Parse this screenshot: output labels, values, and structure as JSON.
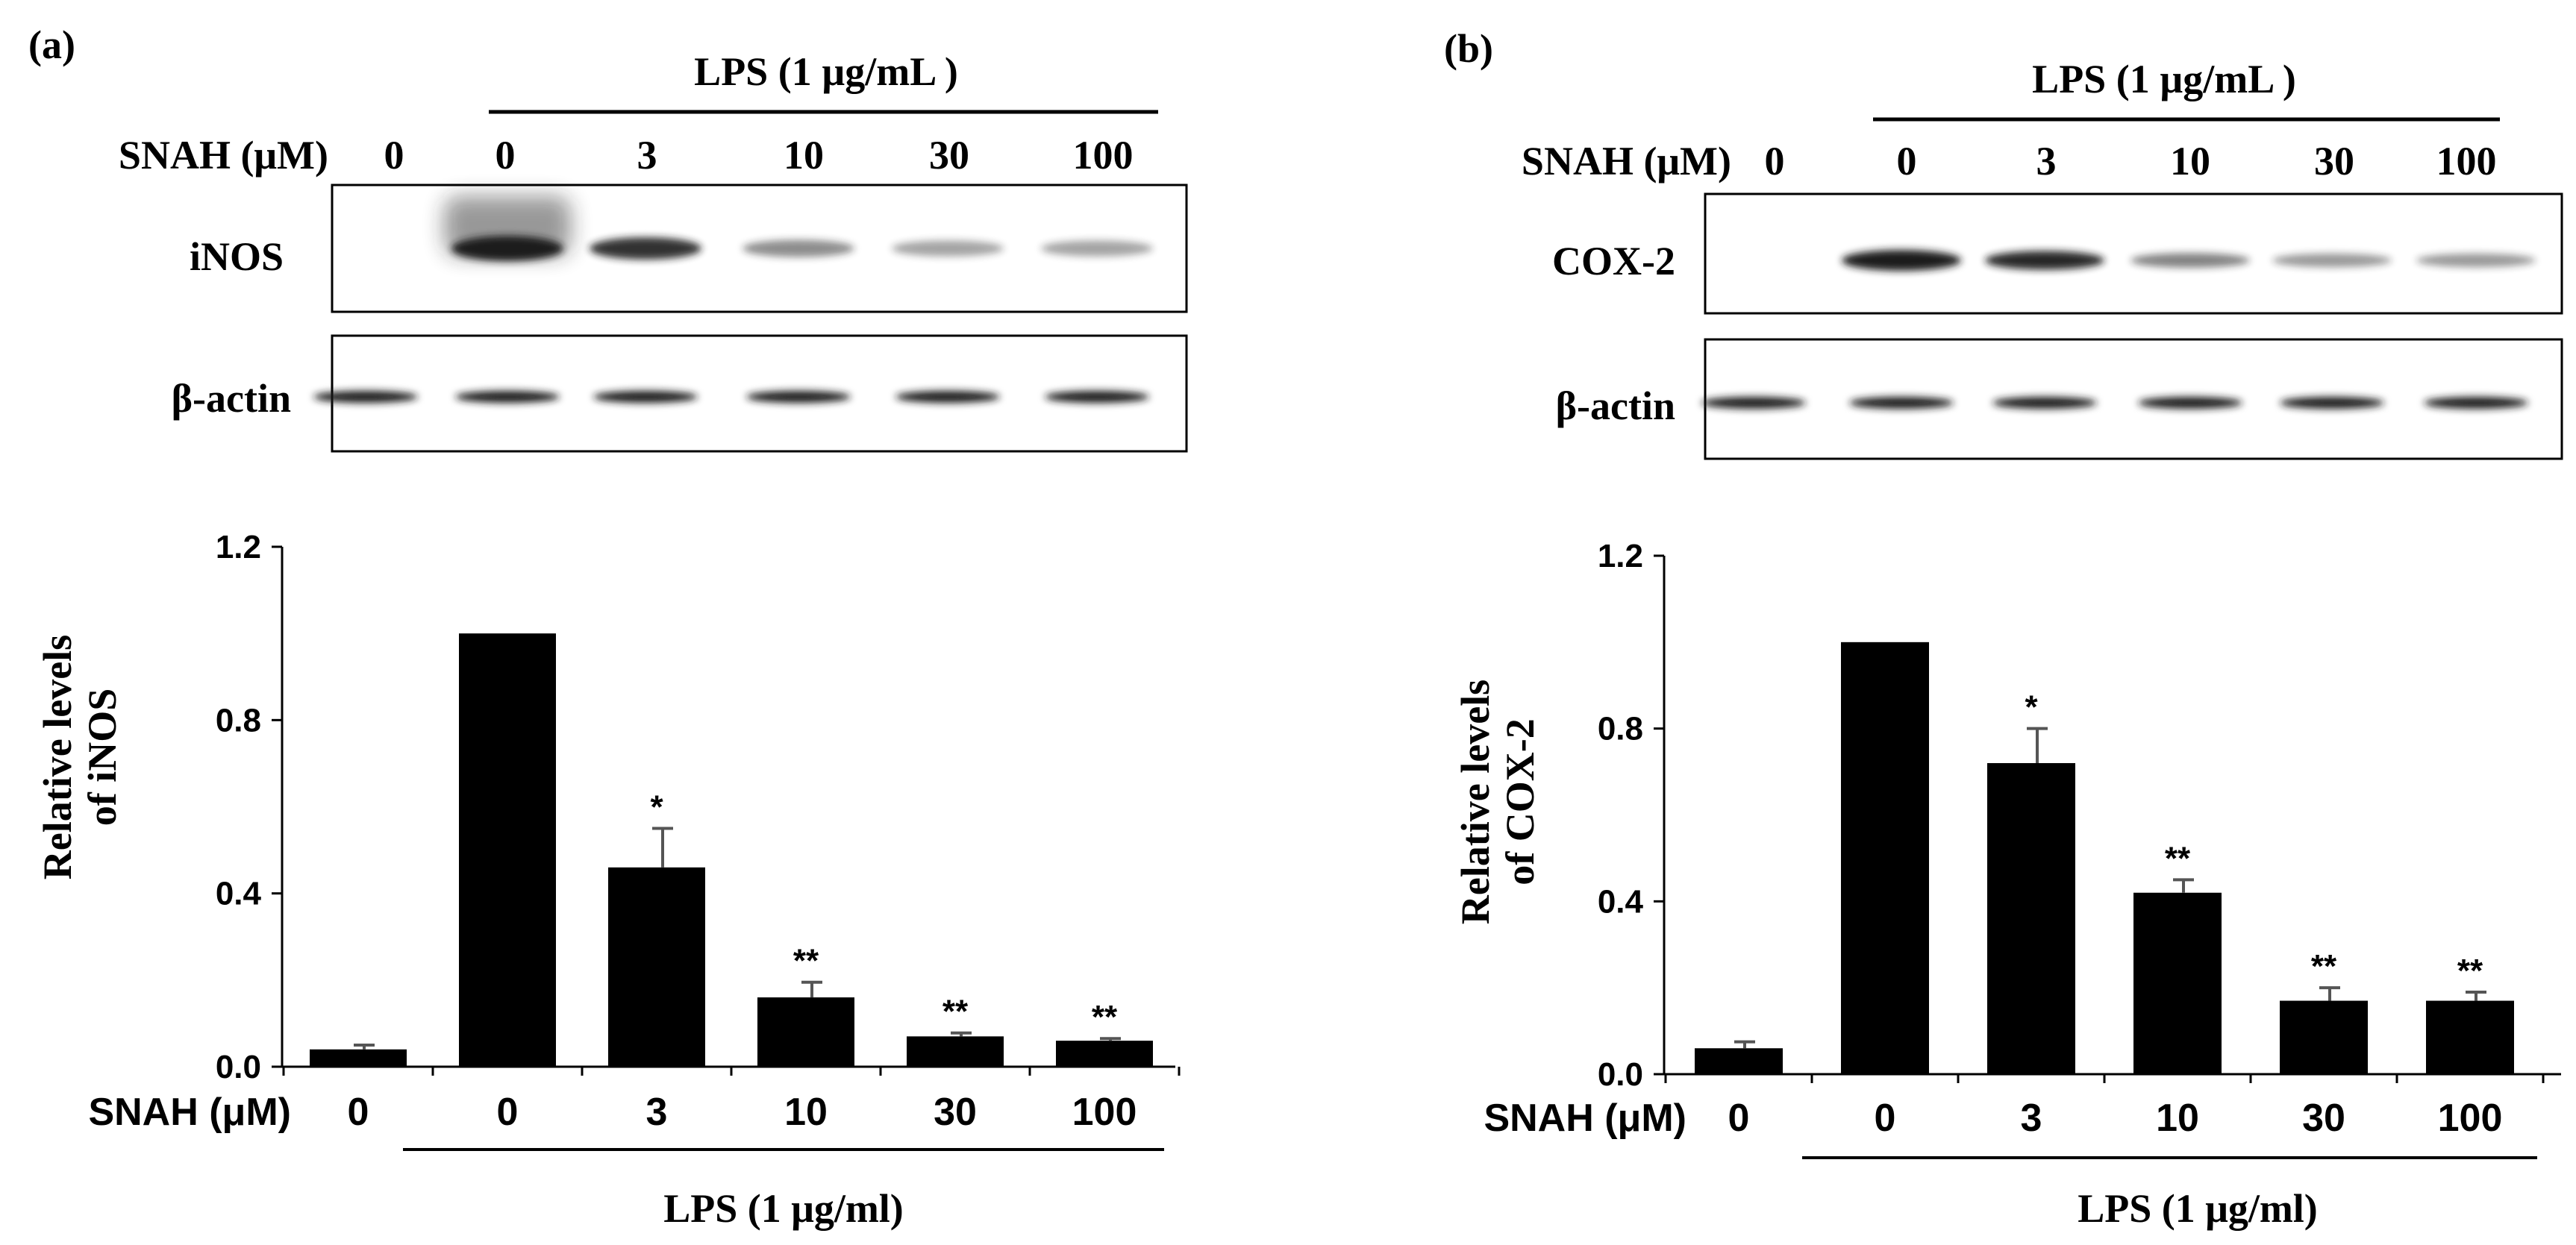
{
  "colors": {
    "bar": "#000000",
    "axis": "#000000",
    "band": "#1a1a1a",
    "error": "#555555"
  },
  "chart_data": [
    {
      "panel": "(a)",
      "type": "bar",
      "blot_header": "LPS (1 µg/mL )",
      "blot_dose_label": "SNAH (μM)",
      "blot_doses": [
        "0",
        "0",
        "3",
        "10",
        "30",
        "100"
      ],
      "protein": "iNOS",
      "loading_control": "β-actin",
      "protein_band_intensity": [
        0.0,
        1.0,
        0.75,
        0.35,
        0.25,
        0.25
      ],
      "categories": [
        "0",
        "0",
        "3",
        "10",
        "30",
        "100"
      ],
      "values": [
        0.04,
        1.0,
        0.46,
        0.16,
        0.07,
        0.06
      ],
      "errors": [
        0.01,
        0.0,
        0.09,
        0.035,
        0.008,
        0.005
      ],
      "significance": [
        "",
        "",
        "*",
        "**",
        "**",
        "**"
      ],
      "ylabel_line1": "Relative levels",
      "ylabel_line2": "of iNOS",
      "ylim": [
        0,
        1.2
      ],
      "yticks": [
        "0.0",
        "0.4",
        "0.8",
        "1.2"
      ],
      "xlabel_prefix": "SNAH (μM)",
      "xlabel_group": "LPS (1 μg/ml)"
    },
    {
      "panel": "(b)",
      "type": "bar",
      "blot_header": "LPS (1 µg/mL )",
      "blot_dose_label": "SNAH (μM)",
      "blot_doses": [
        "0",
        "0",
        "3",
        "10",
        "30",
        "100"
      ],
      "protein": "COX-2",
      "loading_control": "β-actin",
      "protein_band_intensity": [
        0.0,
        1.0,
        0.8,
        0.4,
        0.3,
        0.3
      ],
      "categories": [
        "0",
        "0",
        "3",
        "10",
        "30",
        "100"
      ],
      "values": [
        0.06,
        1.0,
        0.72,
        0.42,
        0.17,
        0.17
      ],
      "errors": [
        0.015,
        0.0,
        0.08,
        0.03,
        0.03,
        0.02
      ],
      "significance": [
        "",
        "",
        "*",
        "**",
        "**",
        "**"
      ],
      "ylabel_line1": "Relative levels",
      "ylabel_line2": "of COX-2",
      "ylim": [
        0,
        1.2
      ],
      "yticks": [
        "0.0",
        "0.4",
        "0.8",
        "1.2"
      ],
      "xlabel_prefix": "SNAH (μM)",
      "xlabel_group": "LPS (1 μg/ml)"
    }
  ]
}
